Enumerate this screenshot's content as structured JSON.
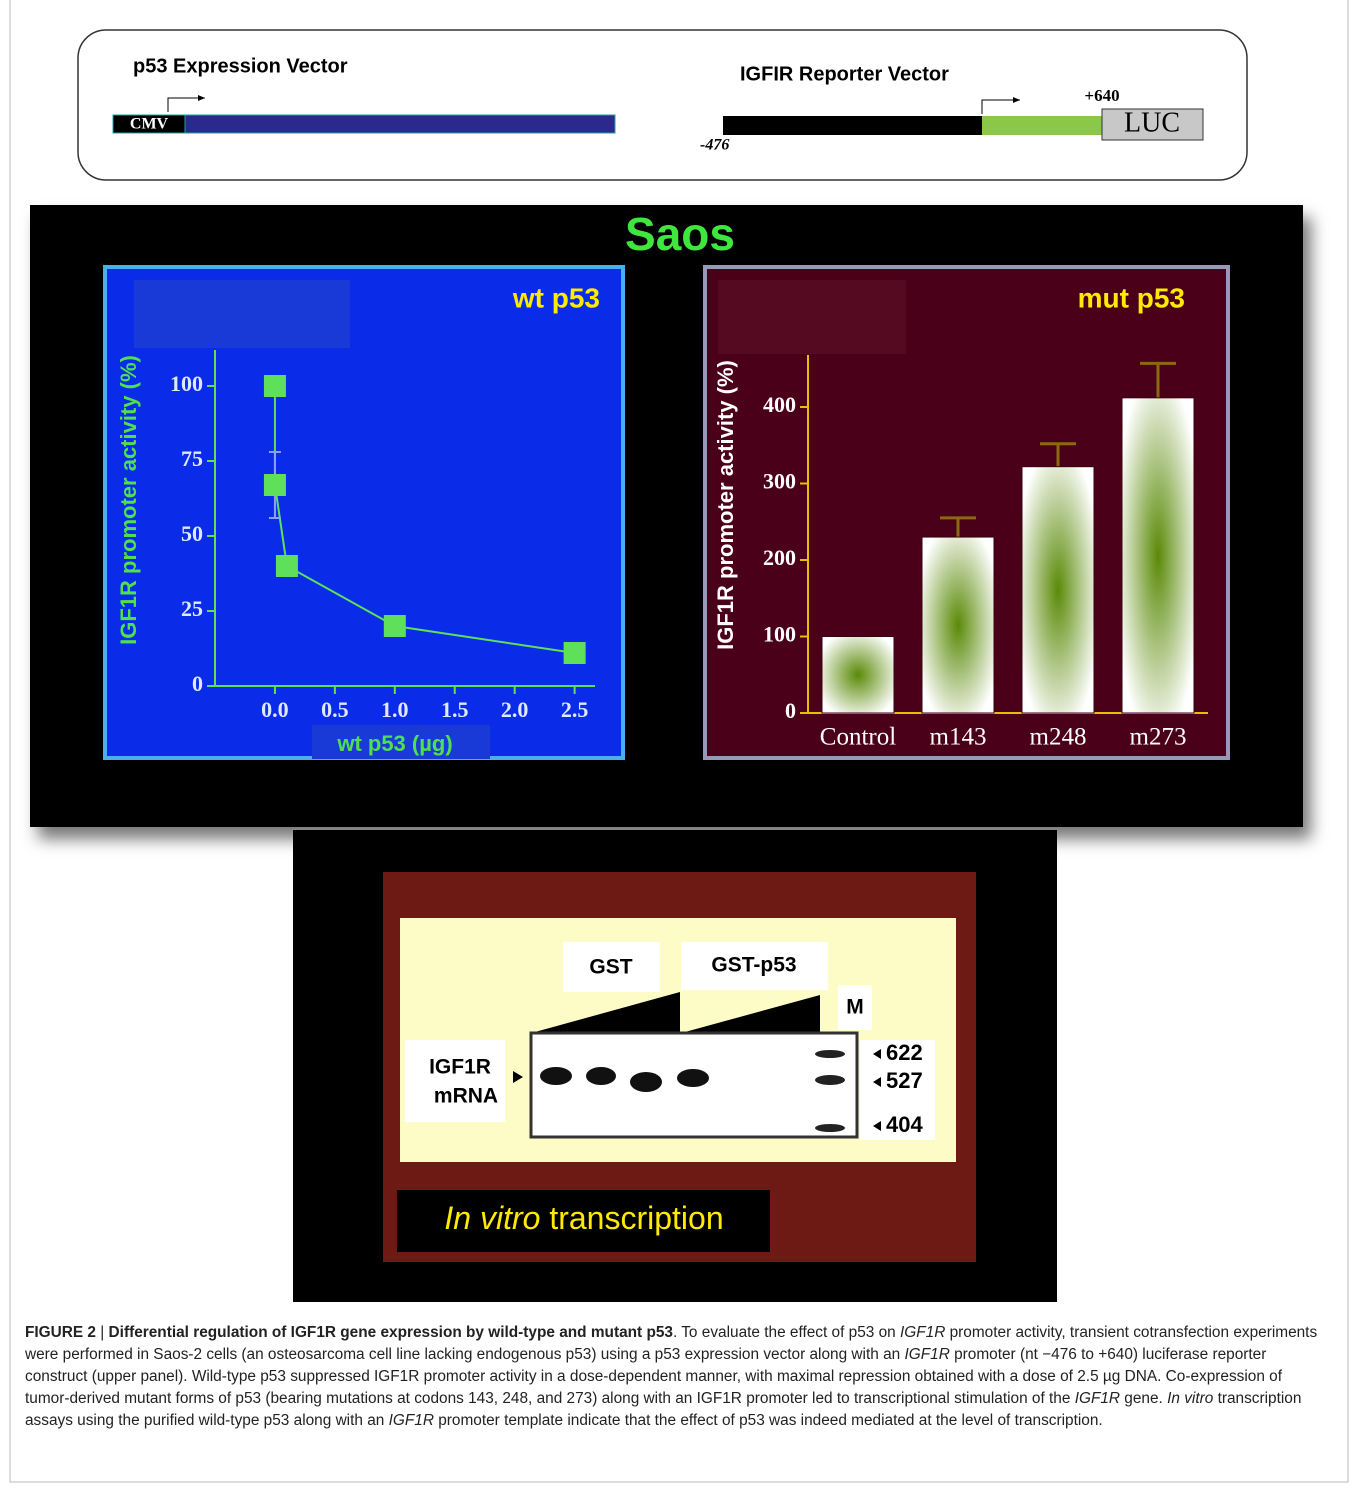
{
  "vectors": {
    "expression": {
      "title": "p53 Expression Vector",
      "promoter": "CMV"
    },
    "reporter": {
      "title": "IGFIR Reporter Vector",
      "start": "-476",
      "end": "+640",
      "gene": "LUC"
    }
  },
  "panel_title": "Saos",
  "chart_data": [
    {
      "type": "line",
      "title": "wt p53",
      "y_label": "IGF1R promoter activity (%)",
      "x_label": "wt p53 (µg)",
      "color": "#5ee05a",
      "x": [
        0,
        0,
        0.1,
        1.0,
        2.5
      ],
      "values": [
        100,
        67,
        40,
        20,
        11
      ],
      "errors": [
        null,
        11,
        null,
        null,
        null
      ],
      "xlim": [
        -0.5,
        2.67
      ],
      "xticks": [
        {
          "value": 0,
          "label": "0.0"
        },
        0.5,
        {
          "value": 1,
          "label": "1.0"
        },
        1.5,
        {
          "value": 2,
          "label": "2.0"
        },
        2.5
      ],
      "ylim": [
        0,
        112
      ],
      "yticks": [
        0,
        25,
        50,
        75,
        100
      ]
    },
    {
      "type": "bar",
      "title": "mut p53",
      "y_label": "IGF1R promoter activity (%)",
      "color": "#5a8a08",
      "categories": [
        "Control",
        "m143",
        "m248",
        "m273"
      ],
      "values": [
        100,
        230,
        322,
        412
      ],
      "errors": [
        null,
        25,
        30,
        45
      ],
      "ylim": [
        0,
        468
      ],
      "yticks": [
        0,
        100,
        200,
        300,
        400
      ]
    }
  ],
  "gel": {
    "groups": [
      "GST",
      "GST-p53"
    ],
    "marker_lane": "M",
    "band_label": [
      "IGF1R",
      "mRNA"
    ],
    "marker_sizes": [
      622,
      527,
      404
    ],
    "footer": {
      "italic": "In vitro",
      "text": "transcription"
    }
  },
  "caption": {
    "label": "FIGURE 2",
    "separator": "|",
    "title": "Differential regulation of IGF1R gene expression by wild-type and mutant p53",
    "body": [
      {
        "text": ". To evaluate the effect of p53 on ",
        "italic": false
      },
      {
        "text": "IGF1R",
        "italic": true
      },
      {
        "text": " promoter activity, transient cotransfection experiments were performed in Saos-2 cells (an osteosarcoma cell line lacking endogenous p53) using a p53 expression vector along with an ",
        "italic": false
      },
      {
        "text": "IGF1R",
        "italic": true
      },
      {
        "text": " promoter (nt −476 to +640) luciferase reporter construct (upper panel). Wild-type p53 suppressed IGF1R promoter activity in a dose-dependent manner, with maximal repression obtained with a dose of 2.5 µg DNA. Co-expression of tumor-derived mutant forms of p53 (bearing mutations at codons 143, 248, and 273) along with an IGF1R promoter led to transcriptional stimulation of the ",
        "italic": false
      },
      {
        "text": "IGF1R",
        "italic": true
      },
      {
        "text": " gene. ",
        "italic": false
      },
      {
        "text": "In vitro",
        "italic": true
      },
      {
        "text": " transcription assays using the purified wild-type p53 along with an ",
        "italic": false
      },
      {
        "text": "IGF1R",
        "italic": true
      },
      {
        "text": " promoter template indicate that the effect of p53 was indeed mediated at the level of transcription.",
        "italic": false
      }
    ]
  }
}
